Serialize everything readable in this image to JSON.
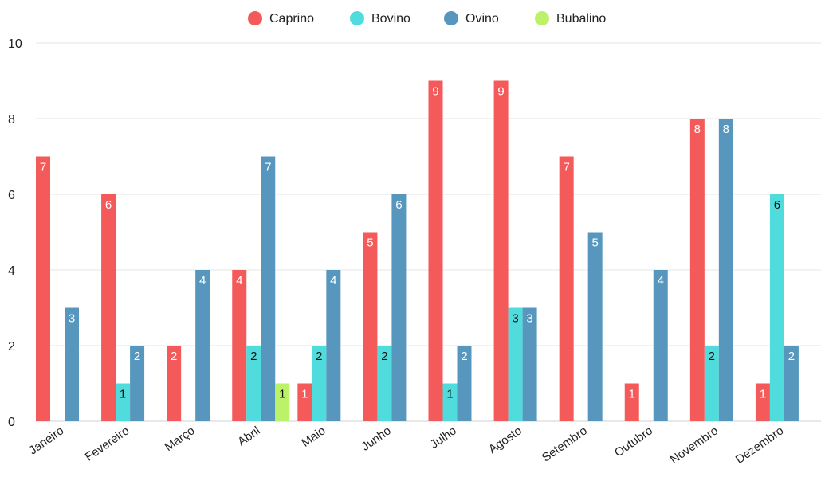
{
  "chart_data": {
    "type": "bar",
    "title": "",
    "xlabel": "",
    "ylabel": "",
    "ylim": [
      0,
      10
    ],
    "yticks": [
      0,
      2,
      4,
      6,
      8,
      10
    ],
    "grid": true,
    "legend": "top-center",
    "categories": [
      "Janeiro",
      "Fevereiro",
      "Março",
      "Abril",
      "Maio",
      "Junho",
      "Julho",
      "Agosto",
      "Setembro",
      "Outubro",
      "Novembro",
      "Dezembro"
    ],
    "series": [
      {
        "name": "Caprino",
        "color": "#f55a5a",
        "values": [
          7,
          6,
          2,
          4,
          1,
          5,
          9,
          9,
          7,
          1,
          8,
          1
        ]
      },
      {
        "name": "Bovino",
        "color": "#50dcdc",
        "values": [
          null,
          1,
          null,
          2,
          2,
          2,
          1,
          3,
          null,
          null,
          2,
          6
        ]
      },
      {
        "name": "Ovino",
        "color": "#5797bd",
        "values": [
          3,
          2,
          4,
          7,
          4,
          6,
          2,
          3,
          5,
          4,
          8,
          2
        ]
      },
      {
        "name": "Bubalino",
        "color": "#bbf26a",
        "values": [
          null,
          null,
          null,
          1,
          null,
          null,
          null,
          null,
          null,
          null,
          null,
          null
        ]
      }
    ]
  }
}
